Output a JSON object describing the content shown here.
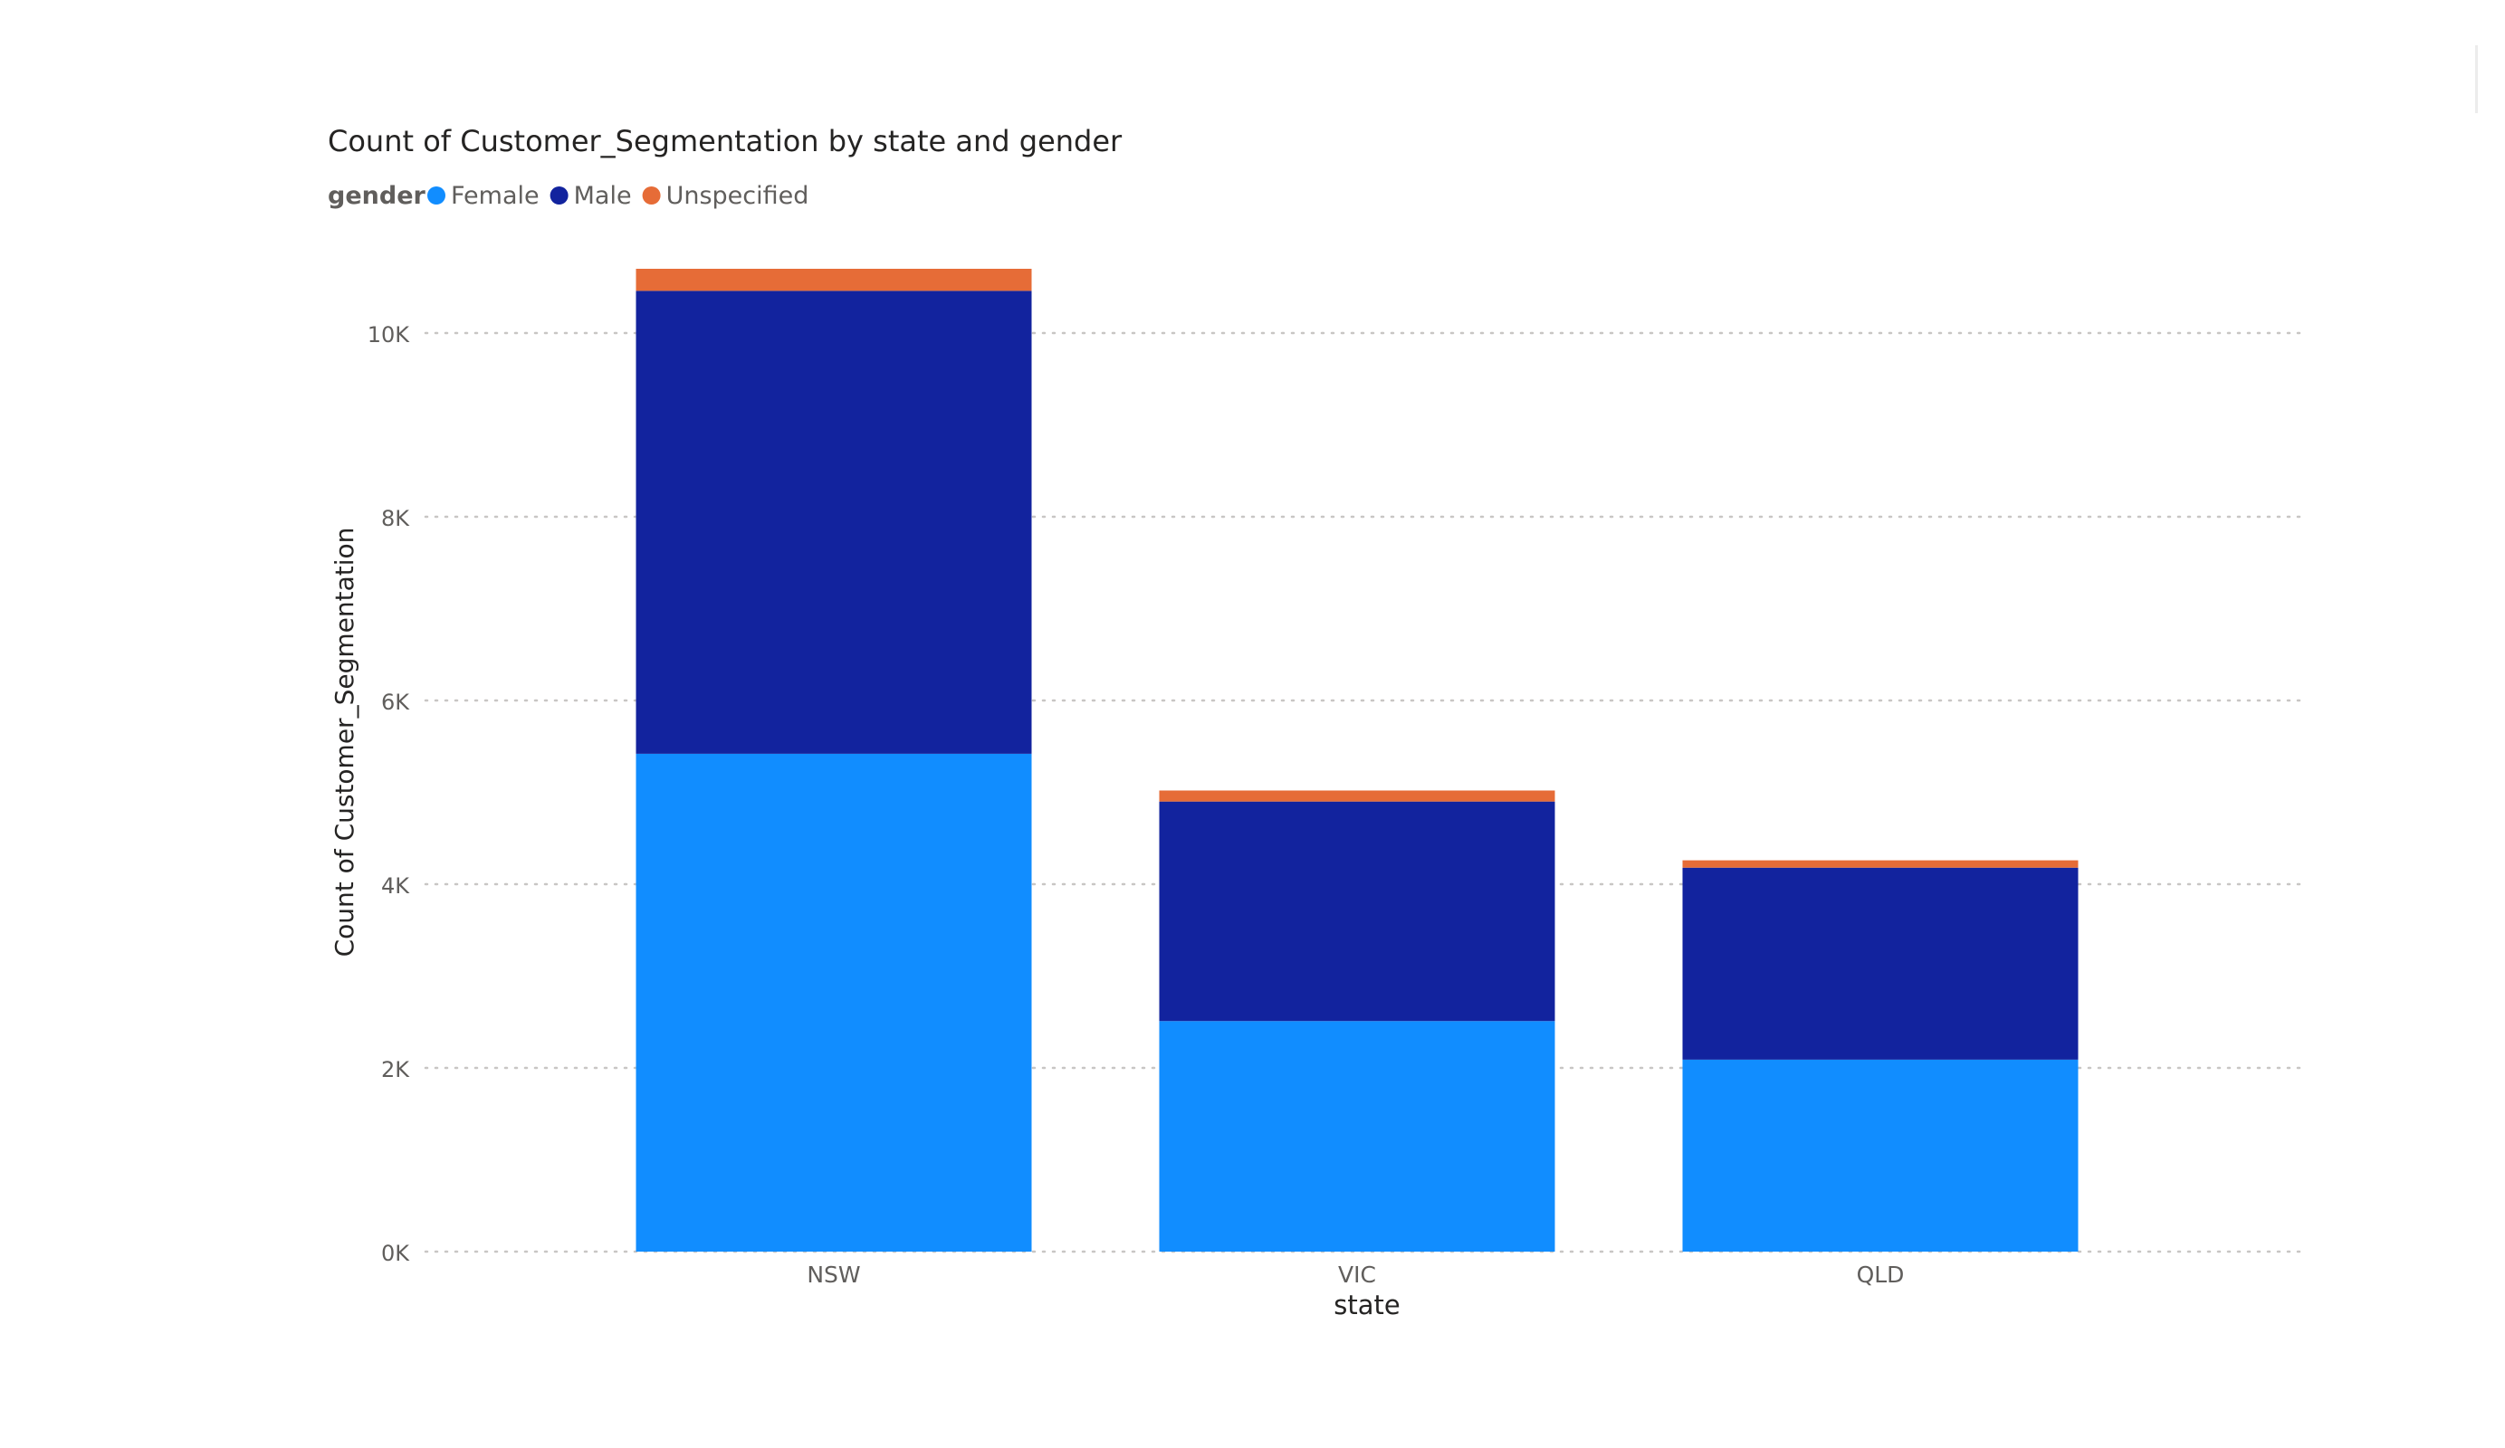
{
  "chart_data": {
    "type": "bar",
    "stacked": true,
    "title": "Count of Customer_Segmentation by state and gender",
    "legend_title": "gender",
    "legend_position": "top-left",
    "xlabel": "state",
    "ylabel": "Count of Customer_Segmentation",
    "categories": [
      "NSW",
      "VIC",
      "QLD"
    ],
    "series": [
      {
        "name": "Female",
        "color": "#118DFF",
        "values": [
          5420,
          2510,
          2090
        ]
      },
      {
        "name": "Male",
        "color": "#12239E",
        "values": [
          5040,
          2390,
          2090
        ]
      },
      {
        "name": "Unspecified",
        "color": "#E66C37",
        "values": [
          240,
          120,
          80
        ]
      }
    ],
    "ylim": [
      0,
      10700
    ],
    "yticks": [
      {
        "value": 0,
        "label": "0K"
      },
      {
        "value": 2000,
        "label": "2K"
      },
      {
        "value": 4000,
        "label": "4K"
      },
      {
        "value": 6000,
        "label": "6K"
      },
      {
        "value": 8000,
        "label": "8K"
      },
      {
        "value": 10000,
        "label": "10K"
      }
    ],
    "grid": true,
    "grid_style": "dotted"
  }
}
